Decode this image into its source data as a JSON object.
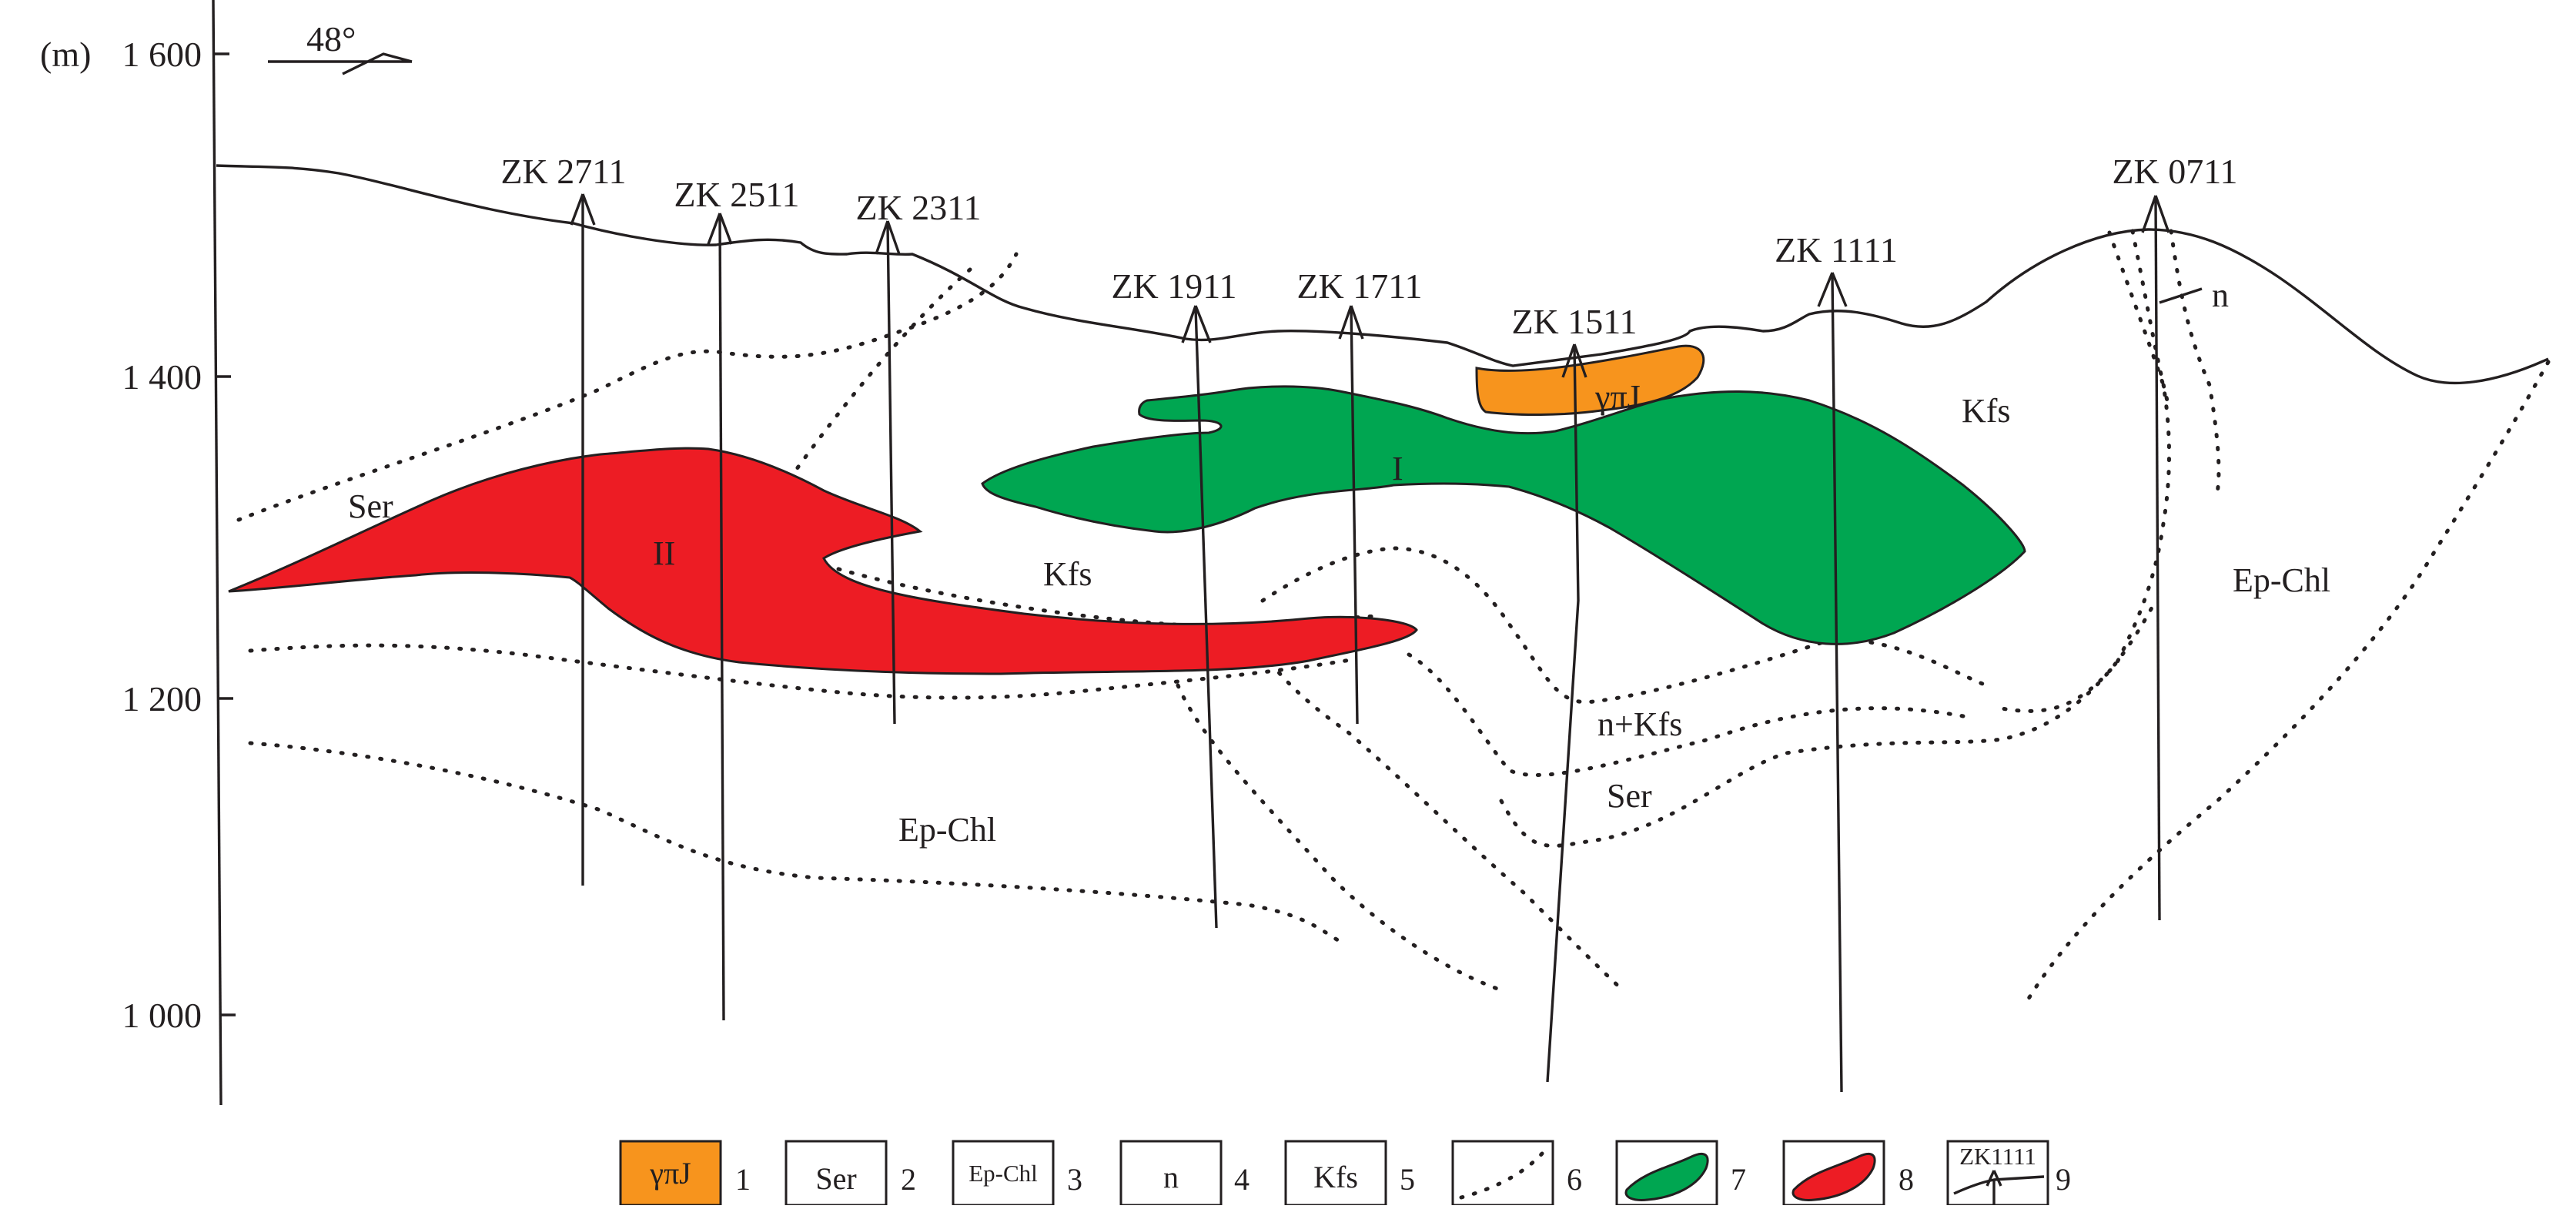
{
  "figure": {
    "axis": {
      "unit": "(m)",
      "elevation_ticks": [
        {
          "label": "1 600",
          "elevation": 1600
        },
        {
          "label": "1 400",
          "elevation": 1400
        },
        {
          "label": "1 200",
          "elevation": 1200
        },
        {
          "label": "1 000",
          "elevation": 1000
        }
      ]
    },
    "orientation": {
      "label": "48°"
    },
    "drill_holes": [
      {
        "id": "ZK 2711"
      },
      {
        "id": "ZK 2511"
      },
      {
        "id": "ZK 2311"
      },
      {
        "id": "ZK 1911"
      },
      {
        "id": "ZK 1711"
      },
      {
        "id": "ZK 1511"
      },
      {
        "id": "ZK 1111"
      },
      {
        "id": "ZK 0711"
      }
    ],
    "zones": {
      "ser_upper_left": "Ser",
      "kfs_center": "Kfs",
      "kfs_right": "Kfs",
      "n_plus_kfs": "n+Kfs",
      "ser_center": "Ser",
      "ep_chl_left": "Ep-Chl",
      "ep_chl_right": "Ep-Chl",
      "n_right": "n"
    },
    "bodies": {
      "orebody_I": {
        "label": "I",
        "color": "#00a651"
      },
      "orebody_II": {
        "label": "II",
        "color": "#ed1c24"
      },
      "granite_porphyry": {
        "label": "γπJ",
        "color": "#f7941d"
      }
    },
    "legend": [
      {
        "number": "1",
        "symbol": "γπJ",
        "fill": "#f7941d"
      },
      {
        "number": "2",
        "symbol": "Ser"
      },
      {
        "number": "3",
        "symbol": "Ep-Chl"
      },
      {
        "number": "4",
        "symbol": "n"
      },
      {
        "number": "5",
        "symbol": "Kfs"
      },
      {
        "number": "6",
        "symbol": "",
        "icon": "dotted-line-icon"
      },
      {
        "number": "7",
        "symbol": "",
        "icon": "green-orebody-icon",
        "fill": "#00a651"
      },
      {
        "number": "8",
        "symbol": "",
        "icon": "red-orebody-icon",
        "fill": "#ed1c24"
      },
      {
        "number": "9",
        "symbol": "ZK1111",
        "icon": "drill-hole-icon"
      }
    ]
  }
}
